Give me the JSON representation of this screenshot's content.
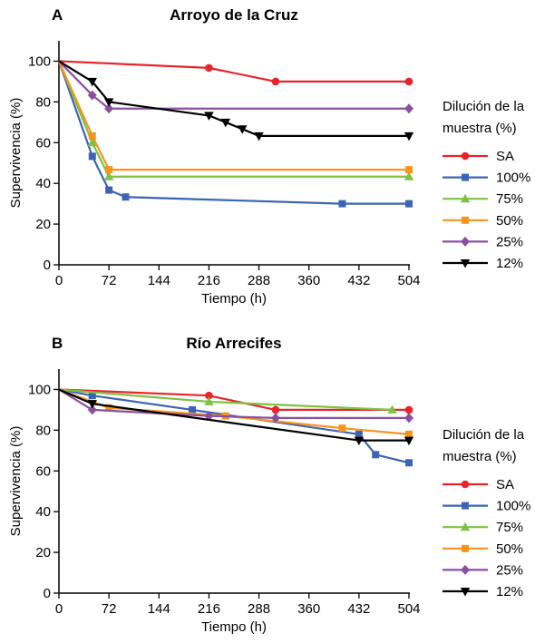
{
  "chart_data": [
    {
      "type": "line",
      "panel_label": "A",
      "title": "Arroyo de la Cruz",
      "xlabel": "Tiempo (h)",
      "ylabel": "Supervivencia (%)",
      "xlim": [
        0,
        504
      ],
      "ylim": [
        0,
        110
      ],
      "xticks": [
        0,
        72,
        144,
        216,
        288,
        360,
        432,
        504
      ],
      "yticks": [
        0,
        20,
        40,
        60,
        80,
        100
      ],
      "grid": false,
      "legend_title": "Dilución de la muestra (%)",
      "legend_title_lines": [
        "Dilución de la",
        "muestra (%)"
      ],
      "legend_position": "right",
      "series": [
        {
          "name": "SA",
          "color": "#e8242a",
          "marker": "circle",
          "x": [
            0,
            216,
            312,
            504
          ],
          "y": [
            100,
            96.7,
            90,
            90
          ]
        },
        {
          "name": "100%",
          "color": "#3b64b4",
          "marker": "square",
          "x": [
            0,
            48,
            72,
            96,
            408,
            504
          ],
          "y": [
            100,
            53.3,
            36.7,
            33.3,
            30,
            30
          ]
        },
        {
          "name": "75%",
          "color": "#7dc242",
          "marker": "triangle-up",
          "x": [
            0,
            48,
            72,
            504
          ],
          "y": [
            100,
            60,
            43.3,
            43.3
          ]
        },
        {
          "name": "50%",
          "color": "#f7941d",
          "marker": "square",
          "x": [
            0,
            48,
            72,
            504
          ],
          "y": [
            100,
            63.3,
            46.7,
            46.7
          ]
        },
        {
          "name": "25%",
          "color": "#8b4fa0",
          "marker": "diamond",
          "x": [
            0,
            48,
            72,
            504
          ],
          "y": [
            100,
            83.3,
            76.7,
            76.7
          ]
        },
        {
          "name": "12%",
          "color": "#000000",
          "marker": "triangle-down",
          "x": [
            0,
            48,
            72,
            216,
            240,
            264,
            288,
            504
          ],
          "y": [
            100,
            90,
            80,
            73.3,
            70,
            66.7,
            63.3,
            63.3
          ]
        }
      ]
    },
    {
      "type": "line",
      "panel_label": "B",
      "title": "Río Arrecifes",
      "xlabel": "Tiempo (h)",
      "ylabel": "Supervivencia (%)",
      "xlim": [
        0,
        504
      ],
      "ylim": [
        0,
        110
      ],
      "xticks": [
        0,
        72,
        144,
        216,
        288,
        360,
        432,
        504
      ],
      "yticks": [
        0,
        20,
        40,
        60,
        80,
        100
      ],
      "grid": false,
      "legend_title": "Dilución de la muestra (%)",
      "legend_title_lines": [
        "Dilución de la",
        "muestra (%)"
      ],
      "legend_position": "right",
      "series": [
        {
          "name": "SA",
          "color": "#e8242a",
          "marker": "circle",
          "x": [
            0,
            216,
            312,
            504
          ],
          "y": [
            100,
            97,
            90,
            90
          ]
        },
        {
          "name": "100%",
          "color": "#3b64b4",
          "marker": "square",
          "x": [
            0,
            48,
            192,
            432,
            456,
            504
          ],
          "y": [
            100,
            97,
            90,
            78,
            68,
            64
          ]
        },
        {
          "name": "75%",
          "color": "#7dc242",
          "marker": "triangle-up",
          "x": [
            0,
            216,
            480
          ],
          "y": [
            100,
            94,
            90
          ]
        },
        {
          "name": "50%",
          "color": "#f7941d",
          "marker": "square",
          "x": [
            0,
            72,
            240,
            408,
            504
          ],
          "y": [
            100,
            91,
            87,
            81,
            78
          ]
        },
        {
          "name": "25%",
          "color": "#8b4fa0",
          "marker": "diamond",
          "x": [
            0,
            48,
            216,
            312,
            504
          ],
          "y": [
            100,
            90,
            87,
            86,
            86
          ]
        },
        {
          "name": "12%",
          "color": "#000000",
          "marker": "triangle-down",
          "x": [
            0,
            48,
            432,
            504
          ],
          "y": [
            100,
            93,
            75,
            75
          ]
        }
      ]
    }
  ]
}
